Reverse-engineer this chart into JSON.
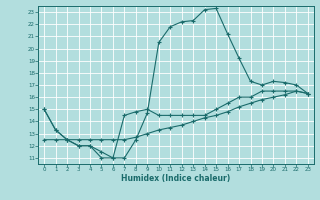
{
  "title": "",
  "xlabel": "Humidex (Indice chaleur)",
  "ylabel": "",
  "bg_color": "#b2dede",
  "grid_color": "#ffffff",
  "line_color": "#1a6b6b",
  "xlim": [
    -0.5,
    23.5
  ],
  "ylim": [
    10.5,
    23.5
  ],
  "xticks": [
    0,
    1,
    2,
    3,
    4,
    5,
    6,
    7,
    8,
    9,
    10,
    11,
    12,
    13,
    14,
    15,
    16,
    17,
    18,
    19,
    20,
    21,
    22,
    23
  ],
  "yticks": [
    11,
    12,
    13,
    14,
    15,
    16,
    17,
    18,
    19,
    20,
    21,
    22,
    23
  ],
  "line1_x": [
    0,
    1,
    2,
    3,
    4,
    5,
    6,
    7,
    8,
    9,
    10,
    11,
    12,
    13,
    14,
    15,
    16,
    17,
    18,
    19,
    20,
    21,
    22,
    23
  ],
  "line1_y": [
    15.0,
    13.3,
    12.5,
    12.0,
    12.0,
    11.5,
    11.0,
    11.0,
    12.5,
    14.7,
    20.5,
    21.8,
    22.2,
    22.3,
    23.2,
    23.3,
    21.2,
    19.2,
    17.3,
    17.0,
    17.3,
    17.2,
    17.0,
    16.3
  ],
  "line2_x": [
    0,
    1,
    2,
    3,
    4,
    5,
    6,
    7,
    8,
    9,
    10,
    11,
    12,
    13,
    14,
    15,
    16,
    17,
    18,
    19,
    20,
    21,
    22,
    23
  ],
  "line2_y": [
    15.0,
    13.3,
    12.5,
    12.0,
    12.0,
    11.0,
    11.0,
    14.5,
    14.8,
    15.0,
    14.5,
    14.5,
    14.5,
    14.5,
    14.5,
    15.0,
    15.5,
    16.0,
    16.0,
    16.5,
    16.5,
    16.5,
    16.5,
    16.3
  ],
  "line3_x": [
    0,
    1,
    2,
    3,
    4,
    5,
    6,
    7,
    8,
    9,
    10,
    11,
    12,
    13,
    14,
    15,
    16,
    17,
    18,
    19,
    20,
    21,
    22,
    23
  ],
  "line3_y": [
    12.5,
    12.5,
    12.5,
    12.5,
    12.5,
    12.5,
    12.5,
    12.5,
    12.7,
    13.0,
    13.3,
    13.5,
    13.7,
    14.0,
    14.3,
    14.5,
    14.8,
    15.2,
    15.5,
    15.8,
    16.0,
    16.2,
    16.5,
    16.3
  ]
}
